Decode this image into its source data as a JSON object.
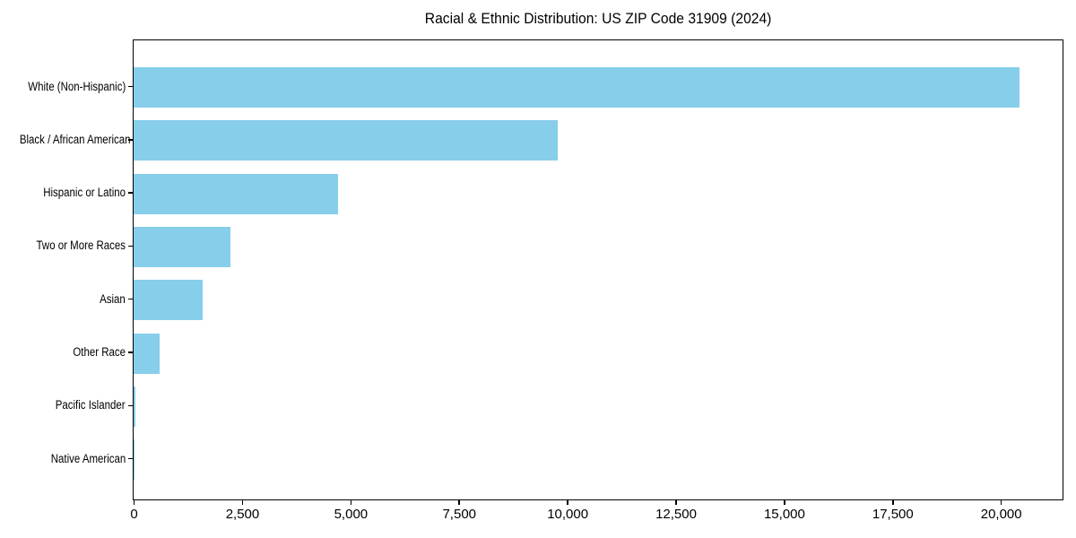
{
  "chart_data": {
    "type": "bar",
    "orientation": "horizontal",
    "title": "Racial & Ethnic Distribution: US ZIP Code 31909 (2024)",
    "categories": [
      "White (Non-Hispanic)",
      "Black / African American",
      "Hispanic or Latino",
      "Two or More Races",
      "Asian",
      "Other Race",
      "Pacific Islander",
      "Native American"
    ],
    "values": [
      20400,
      9770,
      4700,
      2240,
      1590,
      600,
      40,
      15
    ],
    "xlabel": "",
    "ylabel": "",
    "xlim": [
      0,
      21400
    ],
    "xticks": {
      "values": [
        0,
        2500,
        5000,
        7500,
        10000,
        12500,
        15000,
        17500,
        20000
      ],
      "labels": [
        "0",
        "2,500",
        "5,000",
        "7,500",
        "10,000",
        "12,500",
        "15,000",
        "17,500",
        "20,000"
      ]
    },
    "grid": false,
    "legend": null,
    "bar_color": "#87CEEB",
    "background_color": "#ffffff",
    "spine_color": "#000000",
    "text_color": "#000000"
  }
}
